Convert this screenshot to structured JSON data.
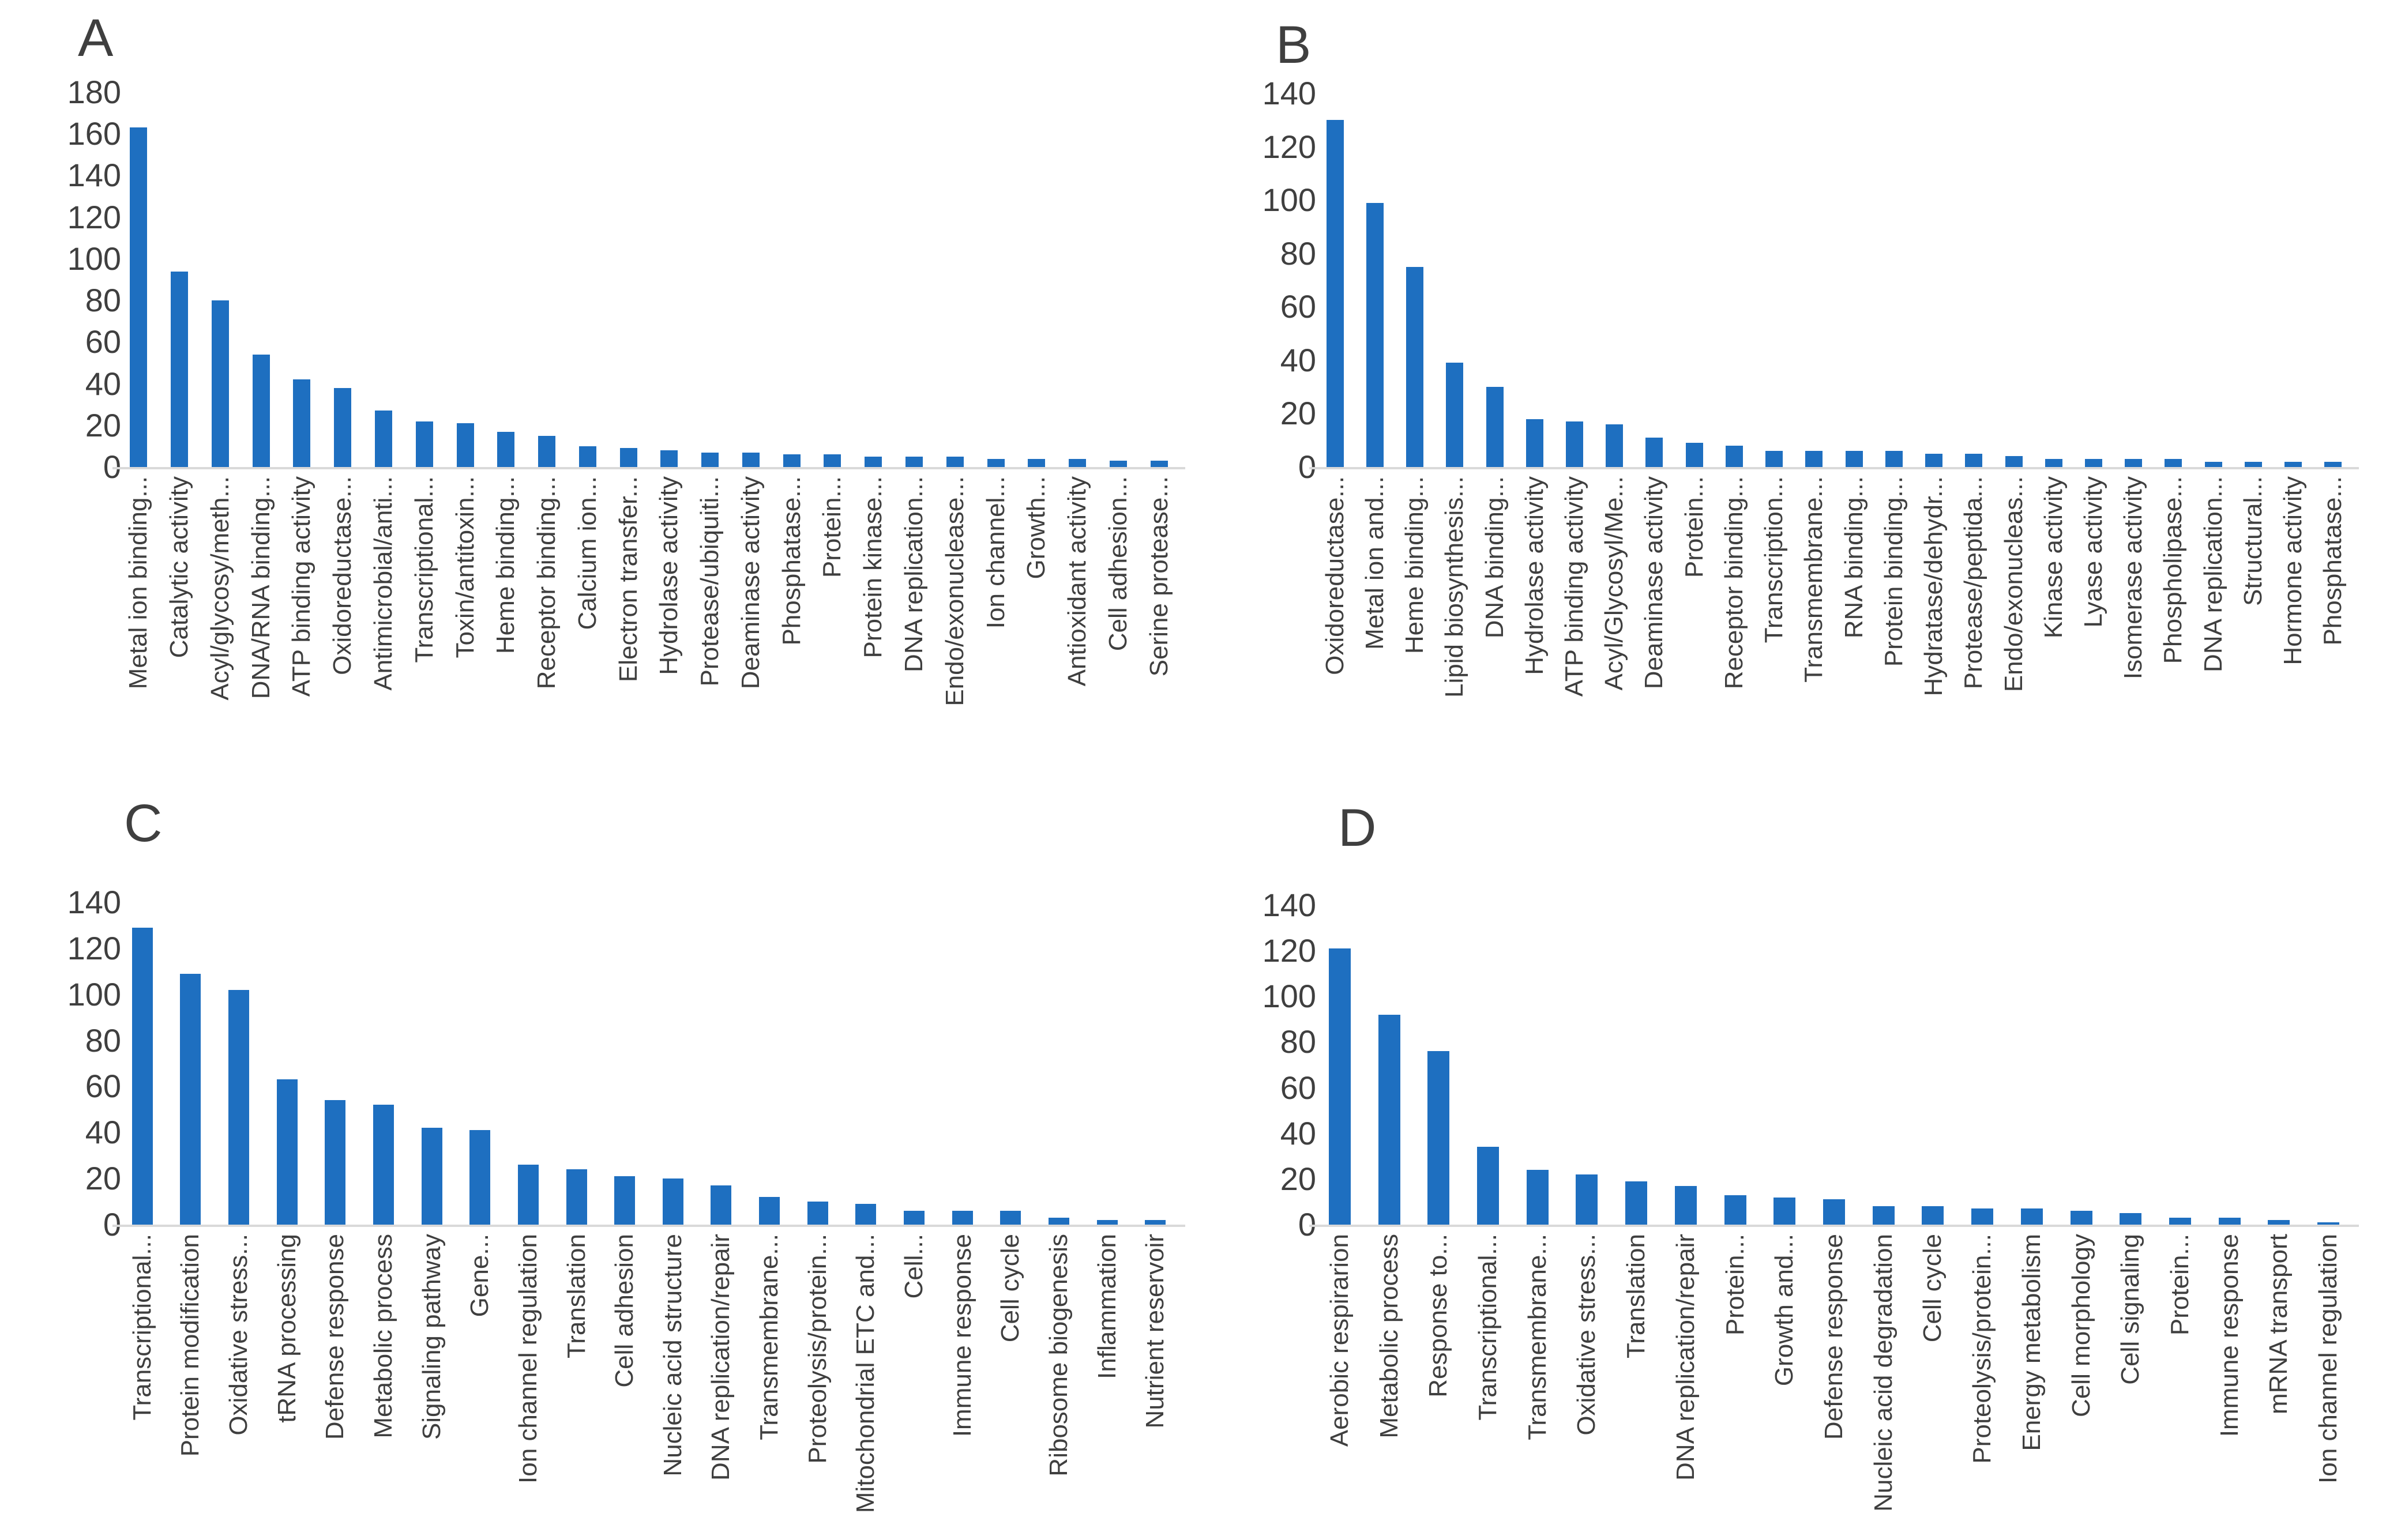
{
  "figure": {
    "background": "#ffffff",
    "panel_letters": [
      "A",
      "B",
      "C",
      "D"
    ]
  },
  "style": {
    "bar_color": "#1e6fc0",
    "axis_color": "#d9d9d9",
    "tick_text_color": "#3f3f3f",
    "label_text_color": "#3f3f3f"
  },
  "chart_data": [
    {
      "type": "bar",
      "panel_label": "A",
      "title": "",
      "xlabel": "",
      "ylabel": "",
      "ylim": [
        0,
        180
      ],
      "ytick_step": 20,
      "grid": false,
      "legend": false,
      "categories": [
        "Metal ion binding...",
        "Catalytic activity",
        "Acyl/glycosy/meth...",
        "DNA/RNA binding...",
        "ATP binding activity",
        "Oxidoreductase...",
        "Antimicrobial/anti...",
        "Transcriptional...",
        "Toxin/antitoxin...",
        "Heme binding...",
        "Receptor binding...",
        "Calcium ion...",
        "Electron transfer...",
        "Hydrolase activity",
        "Protease/ubiquiti...",
        "Deaminase activity",
        "Phosphatase...",
        "Protein...",
        "Protein kinase...",
        "DNA replication...",
        "Endo/exonuclease...",
        "Ion channel...",
        "Growth...",
        "Antioxidant activity",
        "Cell adhesion...",
        "Serine protease..."
      ],
      "values": [
        163,
        94,
        80,
        54,
        42,
        38,
        27,
        22,
        21,
        17,
        15,
        10,
        9,
        8,
        7,
        7,
        6,
        6,
        5,
        5,
        5,
        4,
        4,
        4,
        3,
        3
      ]
    },
    {
      "type": "bar",
      "panel_label": "B",
      "title": "",
      "xlabel": "",
      "ylabel": "",
      "ylim": [
        0,
        140
      ],
      "ytick_step": 20,
      "grid": false,
      "legend": false,
      "categories": [
        "Oxidoreductase...",
        "Metal ion and...",
        "Heme binding...",
        "Lipid biosynthesis...",
        "DNA binding...",
        "Hydrolase activity",
        "ATP binding activity",
        "Acyl/Glycosyl/Me...",
        "Deaminase activity",
        "Protein...",
        "Receptor binding...",
        "Transcription...",
        "Transmembrane...",
        "RNA binding...",
        "Protein binding...",
        "Hydratase/dehydr...",
        "Protease/peptida...",
        "Endo/exonucleas...",
        "Kinase activity",
        "Lyase activity",
        "Isomerase activity",
        "Phospholipase...",
        "DNA replication...",
        "Structural...",
        "Hormone activity",
        "Phosphatase..."
      ],
      "values": [
        130,
        99,
        75,
        39,
        30,
        18,
        17,
        16,
        11,
        9,
        8,
        6,
        6,
        6,
        6,
        5,
        5,
        4,
        3,
        3,
        3,
        3,
        2,
        2,
        2,
        2
      ]
    },
    {
      "type": "bar",
      "panel_label": "C",
      "title": "",
      "xlabel": "",
      "ylabel": "",
      "ylim": [
        0,
        140
      ],
      "ytick_step": 20,
      "grid": false,
      "legend": false,
      "categories": [
        "Transcriptional...",
        "Protein modification",
        "Oxidative stress...",
        "tRNA processing",
        "Defense response",
        "Metabolic process",
        "Signaling pathway",
        "Gene...",
        "Ion channel regulation",
        "Translation",
        "Cell adhesion",
        "Nucleic acid structure",
        "DNA replication/repair",
        "Transmembrane...",
        "Proteolysis/protein...",
        "Mitochondrial ETC and...",
        "Cell...",
        "Immune response",
        "Cell cycle",
        "Ribosome biogenesis",
        "Inflammation",
        "Nutrient reservoir"
      ],
      "values": [
        129,
        109,
        102,
        63,
        54,
        52,
        42,
        41,
        26,
        24,
        21,
        20,
        17,
        12,
        10,
        9,
        6,
        6,
        6,
        3,
        2,
        2
      ]
    },
    {
      "type": "bar",
      "panel_label": "D",
      "title": "",
      "xlabel": "",
      "ylabel": "",
      "ylim": [
        0,
        140
      ],
      "ytick_step": 20,
      "grid": false,
      "legend": false,
      "categories": [
        "Aerobic respirarion",
        "Metabolic process",
        "Response to...",
        "Transcriptional...",
        "Transmembrane...",
        "Oxidative stress...",
        "Translation",
        "DNA replication/repair",
        "Protein...",
        "Growth and...",
        "Defense response",
        "Nucleic acid degradation",
        "Cell cycle",
        "Proteolysis/protein...",
        "Energy metabolism",
        "Cell morphology",
        "Cell signaling",
        "Protein...",
        "Immune response",
        "mRNA transport",
        "Ion channel regulation"
      ],
      "values": [
        121,
        92,
        76,
        34,
        24,
        22,
        19,
        17,
        13,
        12,
        11,
        8,
        8,
        7,
        7,
        6,
        5,
        3,
        3,
        2,
        1
      ]
    }
  ]
}
